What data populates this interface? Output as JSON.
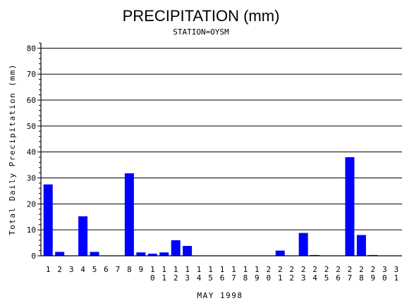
{
  "chart_data": {
    "type": "bar",
    "title": "PRECIPITATION (mm)",
    "subtitle": "STATION=OYSM",
    "xlabel": "MAY 1998",
    "ylabel": "Total Daily Precipitation (mm)",
    "categories": [
      "1",
      "2",
      "3",
      "4",
      "5",
      "6",
      "7",
      "8",
      "9",
      "10",
      "11",
      "12",
      "13",
      "14",
      "15",
      "16",
      "17",
      "18",
      "19",
      "20",
      "21",
      "22",
      "23",
      "24",
      "25",
      "26",
      "27",
      "28",
      "29",
      "30",
      "31"
    ],
    "values": [
      27.5,
      1.5,
      0,
      15.2,
      1.5,
      0,
      0,
      31.8,
      1.3,
      0.8,
      1.3,
      6.0,
      3.8,
      0,
      0,
      0,
      0,
      0,
      0,
      0,
      2.0,
      0,
      8.8,
      0.3,
      0,
      0,
      38.0,
      8.0,
      0.3,
      0,
      0
    ],
    "ylim": [
      0,
      82
    ],
    "yticks": [
      0,
      10,
      20,
      30,
      40,
      50,
      60,
      70,
      80
    ],
    "grid": true,
    "bar_color": "#0000ff"
  }
}
